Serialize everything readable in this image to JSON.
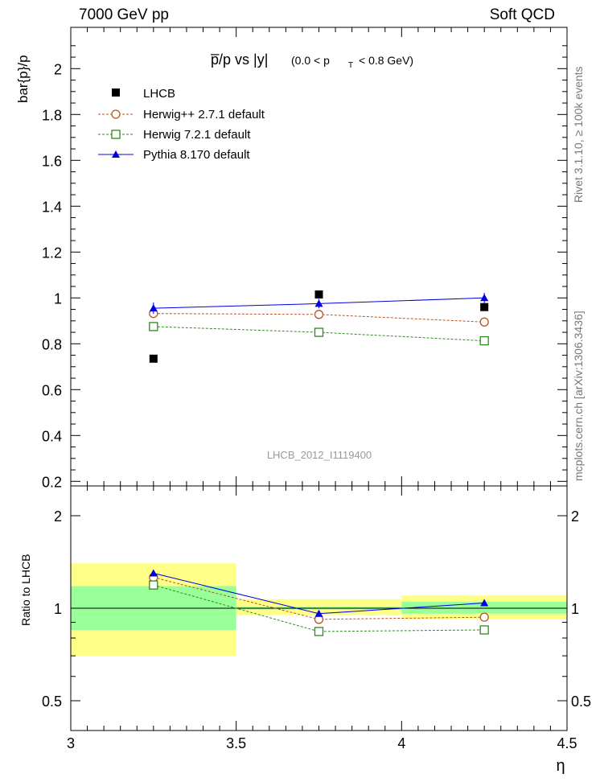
{
  "header": {
    "left": "7000 GeV pp",
    "right": "Soft QCD"
  },
  "side": {
    "rivet": "Rivet 3.1.10, ≥ 100k events",
    "mcplots": "mcplots.cern.ch [arXiv:1306.3436]"
  },
  "chart_data": {
    "type": "scatter",
    "title_main": "p̅/p vs |y|",
    "title_cut_prefix": "(0.0 < p",
    "title_cut_sub": "T",
    "title_cut_suffix": "< 0.8 GeV)",
    "ylabel": "bar{p}/p",
    "xlabel": "η",
    "watermark": "LHCB_2012_I1119400",
    "xlim": [
      3.0,
      4.5
    ],
    "ylim": [
      0.18,
      2.18
    ],
    "xticks": [
      "3",
      "3.5",
      "4",
      "4.5"
    ],
    "yticks": [
      "0.2",
      "0.4",
      "0.6",
      "0.8",
      "1",
      "1.2",
      "1.4",
      "1.6",
      "1.8",
      "2"
    ],
    "x_edges": [
      3.0,
      3.5,
      4.0,
      4.5
    ],
    "x": [
      3.25,
      3.75,
      4.25
    ],
    "series": [
      {
        "name": "LHCB",
        "values": [
          0.735,
          1.015,
          0.96
        ],
        "color": "#000000",
        "marker": "square-filled"
      },
      {
        "name": "Herwig++ 2.7.1 default",
        "values": [
          0.932,
          0.928,
          0.895
        ],
        "errors": [
          0.02,
          0.02,
          0.02
        ],
        "color": "#b8541e",
        "marker": "circle-open"
      },
      {
        "name": "Herwig 7.2.1 default",
        "values": [
          0.875,
          0.85,
          0.813
        ],
        "errors": [
          0.02,
          0.02,
          0.02
        ],
        "color": "#2e8a1e",
        "marker": "square-open"
      },
      {
        "name": "Pythia 8.170 default",
        "values": [
          0.955,
          0.975,
          1.0
        ],
        "errors": [
          0.025,
          0.02,
          0.022
        ],
        "color": "#0000dd",
        "marker": "triangle-filled"
      }
    ],
    "ratio": {
      "ylabel": "Ratio to LHCB",
      "yticks": [
        "0.5",
        "1",
        "2"
      ],
      "ylim": [
        0.4,
        2.5
      ],
      "scale": "log",
      "band_inner": [
        [
          0.85,
          1.18
        ],
        [
          0.99,
          1.01
        ],
        [
          0.96,
          1.05
        ]
      ],
      "band_outer": [
        [
          0.7,
          1.4
        ],
        [
          0.95,
          1.07
        ],
        [
          0.92,
          1.1
        ]
      ],
      "series": [
        {
          "name": "Herwig++ 2.7.1 default",
          "values": [
            1.26,
            0.92,
            0.935
          ]
        },
        {
          "name": "Herwig 7.2.1 default",
          "values": [
            1.19,
            0.84,
            0.85
          ]
        },
        {
          "name": "Pythia 8.170 default",
          "values": [
            1.3,
            0.96,
            1.04
          ]
        }
      ]
    }
  }
}
